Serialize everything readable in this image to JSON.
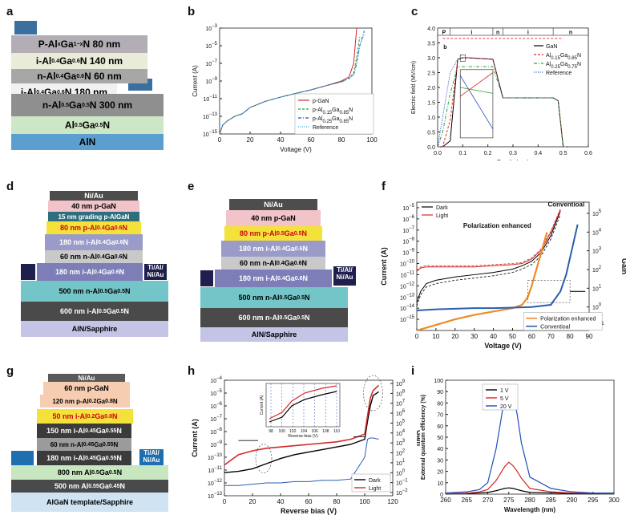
{
  "labels": {
    "a": "a",
    "b": "b",
    "c": "c",
    "d": "d",
    "e": "e",
    "f": "f",
    "g": "g",
    "h": "h",
    "i": "i"
  },
  "panel_a": {
    "layers": [
      {
        "text": "P-Al<sub>x</sub>Ga<sub>1−x</sub>N 80 nm",
        "color": "#b3aeb6"
      },
      {
        "text": "i-Al<sub>0.4</sub>Ga<sub>0.6</sub>N 140 nm",
        "color": "#e9ecd8"
      },
      {
        "text": "n-Al<sub>0.4</sub>Ga<sub>0.6</sub>N 60 nm",
        "color": "#a7a7a7"
      },
      {
        "text": "i-Al<sub>0.4</sub>Ga<sub>0.6</sub>N 180 nm",
        "color": "#f1f1f1"
      },
      {
        "text": "n-Al<sub>0.5</sub>Ga<sub>0.5</sub>N 300 nm",
        "color": "#8f8f8f"
      },
      {
        "text": "Al<sub>0.5</sub>Ga<sub>0.5</sub>N",
        "color": "#cde6c5"
      },
      {
        "text": "AlN",
        "color": "#5b9fd0"
      }
    ]
  },
  "panel_b": {
    "ylabel": "Current (A)",
    "xlabel": "Voltage (V)",
    "xticks": [
      "0",
      "20",
      "40",
      "60",
      "80",
      "100"
    ],
    "yticks": [
      "10<tspan font-size='6' dy='-4'>−3</tspan>",
      "10<tspan font-size='6' dy='-4'>−5</tspan>",
      "10<tspan font-size='6' dy='-4'>−7</tspan>",
      "10<tspan font-size='6' dy='-4'>−9</tspan>",
      "10<tspan font-size='6' dy='-4'>−11</tspan>",
      "10<tspan font-size='6' dy='-4'>−13</tspan>",
      "10<tspan font-size='6' dy='-4'>−15</tspan>"
    ],
    "legend": [
      "p-GaN",
      "p-Al<tspan font-size='6' dy='3'>0.15</tspan><tspan dy='-3'>Ga</tspan><tspan font-size='6' dy='3'>0.85</tspan><tspan dy='-3'>N</tspan>",
      "p-Al<tspan font-size='6' dy='3'>0.25</tspan><tspan dy='-3'>Ga</tspan><tspan font-size='6' dy='3'>0.85</tspan><tspan dy='-3'>N</tspan>",
      "Reference"
    ]
  },
  "chart_data": [
    {
      "type": "line",
      "panel": "b",
      "xlabel": "Voltage (V)",
      "ylabel": "Current (A)",
      "xlim": [
        0,
        100
      ],
      "ylim": [
        1e-15,
        0.001
      ],
      "yscale": "log",
      "x": [
        0,
        2,
        5,
        10,
        15,
        20,
        30,
        40,
        50,
        60,
        70,
        80,
        85,
        88,
        90,
        92,
        95
      ],
      "series": [
        {
          "name": "p-GaN",
          "color": "#d62728",
          "values": [
            1e-15,
            1e-14,
            3e-14,
            1e-13,
            2e-13,
            1e-12,
            5e-12,
            1.5e-11,
            4e-11,
            1e-10,
            3e-10,
            1e-09,
            3e-09,
            1e-07,
            0.001,
            null,
            null
          ]
        },
        {
          "name": "p-Al0.15Ga0.85N",
          "color": "#2ca02c",
          "values": [
            1e-15,
            1e-14,
            3e-14,
            1e-13,
            2e-13,
            1e-12,
            5e-12,
            1.5e-11,
            4e-11,
            1e-10,
            3e-10,
            8e-10,
            2e-09,
            8e-09,
            5e-07,
            0.0001,
            null
          ]
        },
        {
          "name": "p-Al0.25Ga0.85N",
          "color": "#1f4fbf",
          "values": [
            1e-15,
            1e-14,
            3e-14,
            1e-13,
            2e-13,
            1e-12,
            5e-12,
            1.5e-11,
            4e-11,
            1e-10,
            3e-10,
            8e-10,
            2e-09,
            5e-09,
            1e-07,
            1e-05,
            0.0005
          ]
        },
        {
          "name": "Reference",
          "color": "#33a9e0",
          "values": [
            1e-15,
            1e-14,
            3e-14,
            1e-13,
            2e-13,
            1e-12,
            5e-12,
            1.5e-11,
            4e-11,
            1e-10,
            3e-10,
            8e-10,
            2e-09,
            5e-09,
            8e-08,
            1e-05,
            0.0002
          ]
        }
      ]
    },
    {
      "type": "line",
      "panel": "c",
      "xlabel": "Depth (um)",
      "ylabel": "Electric field (MV/cm)",
      "xlim": [
        0,
        0.6
      ],
      "ylim": [
        0,
        4
      ],
      "x": [
        0.0,
        0.02,
        0.05,
        0.08,
        0.1,
        0.12,
        0.22,
        0.26,
        0.46,
        0.48,
        0.5,
        0.52
      ],
      "series": [
        {
          "name": "GaN",
          "color": "#000000",
          "values": [
            0,
            0,
            0.2,
            2.95,
            3.0,
            3.0,
            2.95,
            1.65,
            1.65,
            1.55,
            0,
            0
          ]
        },
        {
          "name": "Al0.15Ga0.85N",
          "color": "#d62728",
          "values": [
            0,
            0,
            0.9,
            2.95,
            3.0,
            3.0,
            2.95,
            1.65,
            1.65,
            1.55,
            0,
            0
          ]
        },
        {
          "name": "Al0.25Ga0.75N",
          "color": "#2ca02c",
          "values": [
            0,
            0.5,
            1.8,
            2.7,
            2.7,
            2.7,
            2.7,
            1.65,
            1.65,
            1.55,
            0,
            0
          ]
        },
        {
          "name": "Reference",
          "color": "#1f4fbf",
          "values": [
            0,
            1.0,
            2.5,
            2.95,
            3.0,
            3.0,
            2.95,
            1.65,
            1.65,
            1.55,
            0,
            0
          ]
        }
      ]
    },
    {
      "type": "line",
      "panel": "f",
      "xlabel": "Voltage (V)",
      "ylabel": "Current (A)",
      "y2label": "Gain",
      "xlim": [
        0,
        90
      ],
      "ylim": [
        1e-16,
        0.0001
      ],
      "yscale": "log",
      "series": [
        {
          "name": "Dark",
          "color": "#000000"
        },
        {
          "name": "Light",
          "color": "#d62728"
        },
        {
          "name": "Polarization enhanced",
          "color": "#f08a24"
        },
        {
          "name": "Conventioal",
          "color": "#2a5db0"
        }
      ]
    },
    {
      "type": "line",
      "panel": "h",
      "xlabel": "Reverse bias (V)",
      "ylabel": "Current (A)",
      "y2label": "Gain",
      "xlim": [
        0,
        120
      ],
      "ylim": [
        1e-13,
        0.0001
      ],
      "yscale": "log",
      "series": [
        {
          "name": "Dark",
          "color": "#000000"
        },
        {
          "name": "Light",
          "color": "#d62728"
        }
      ]
    },
    {
      "type": "line",
      "panel": "i",
      "xlabel": "Wavelength (nm)",
      "ylabel": "External quantum efficiency (%)",
      "xlim": [
        260,
        300
      ],
      "ylim": [
        0,
        100
      ],
      "x": [
        260,
        265,
        268,
        270,
        272,
        273,
        274,
        275,
        276,
        277,
        278,
        280,
        285,
        290,
        295,
        300
      ],
      "series": [
        {
          "name": "1 V",
          "color": "#000000",
          "values": [
            0.5,
            0.5,
            1,
            1.5,
            3,
            4,
            5,
            5.5,
            5,
            4,
            3,
            1.5,
            1,
            0.5,
            0.5,
            0.5
          ]
        },
        {
          "name": "5 V",
          "color": "#d62728",
          "values": [
            0.5,
            0.8,
            2,
            4,
            12,
            18,
            24,
            28,
            25,
            20,
            14,
            5,
            2,
            1,
            0.8,
            0.5
          ]
        },
        {
          "name": "20 V",
          "color": "#1f4fbf",
          "values": [
            1,
            2,
            4,
            10,
            40,
            62,
            85,
            96,
            88,
            70,
            45,
            15,
            5,
            2,
            1,
            1
          ]
        }
      ]
    }
  ],
  "panel_c": {
    "ylabel": "Electric field (MV/cm)",
    "xlabel": "Depth (um)",
    "xticks": [
      "0.0",
      "0.1",
      "0.2",
      "0.3",
      "0.4",
      "0.5",
      "0.6"
    ],
    "yticks": [
      "0.0",
      "0.5",
      "1.0",
      "1.5",
      "2.0",
      "2.5",
      "3.0",
      "3.5",
      "4.0"
    ],
    "regions": [
      "P",
      "i",
      "n",
      "i",
      "n"
    ],
    "inset_label": "b",
    "legend": [
      "GaN",
      "Al<tspan font-size='6' dy='3'>0.15</tspan><tspan dy='-3'>Ga</tspan><tspan font-size='6' dy='3'>0.85</tspan><tspan dy='-3'>N</tspan>",
      "Al<tspan font-size='6' dy='3'>0.25</tspan><tspan dy='-3'>Ga</tspan><tspan font-size='6' dy='3'>0.75</tspan><tspan dy='-3'>N</tspan>",
      "Reference"
    ]
  },
  "panel_d": {
    "layers": [
      {
        "text": "Ni/Au",
        "color": "#4d4d4d",
        "fg": "#fff"
      },
      {
        "text": "40 nm p-GaN",
        "color": "#f2c3c8",
        "fg": "#000"
      },
      {
        "text": "15 nm grading p-AlGaN",
        "color": "#2e6f7f",
        "fg": "#fff"
      },
      {
        "text": "80 nm p-Al<sub>0.4</sub>Ga<sub>0.6</sub>N",
        "color": "#f4e13a",
        "fg": "#d0021b"
      },
      {
        "text": "180 nm i-Al<sub>0.4</sub>Ga<sub>0.6</sub>N",
        "color": "#9b9bc9",
        "fg": "#fff"
      },
      {
        "text": "60 nm n-Al<sub>0.4</sub>Ga<sub>0.6</sub>N",
        "color": "#c9c9c9",
        "fg": "#000"
      },
      {
        "text": "180 nm i-Al<sub>0.4</sub>Ga<sub>0.6</sub>N",
        "color": "#7d7db8",
        "fg": "#fff"
      },
      {
        "text": "500 nm n-Al<sub>0.5</sub>Ga<sub>0.5</sub>N",
        "color": "#74c5c8",
        "fg": "#000"
      },
      {
        "text": "600 nm i-Al<sub>0.5</sub>Ga<sub>0.5</sub>N",
        "color": "#4a4a4a",
        "fg": "#fff"
      },
      {
        "text": "AlN/Sapphire",
        "color": "#c4c4e6",
        "fg": "#000"
      }
    ],
    "contact": "Ti/Al/<br>Ni/Au"
  },
  "panel_e": {
    "layers": [
      {
        "text": "Ni/Au",
        "color": "#4d4d4d",
        "fg": "#fff"
      },
      {
        "text": "40 nm p-GaN",
        "color": "#f2c3c8",
        "fg": "#000"
      },
      {
        "text": "80 nm p-Al<sub>0.5</sub>Ga<sub>0.5</sub>N",
        "color": "#f4e13a",
        "fg": "#d0021b"
      },
      {
        "text": "180 nm i-Al<sub>0.4</sub>Ga<sub>0.6</sub>N",
        "color": "#9b9bc9",
        "fg": "#fff"
      },
      {
        "text": "60 nm n-Al<sub>0.4</sub>Ga<sub>0.6</sub>N",
        "color": "#c9c9c9",
        "fg": "#000"
      },
      {
        "text": "180 nm i-Al<sub>0.4</sub>Ga<sub>0.6</sub>N",
        "color": "#7d7db8",
        "fg": "#fff"
      },
      {
        "text": "500 nm n-Al<sub>0.5</sub>Ga<sub>0.5</sub>N",
        "color": "#74c5c8",
        "fg": "#000"
      },
      {
        "text": "600 nm n-Al<sub>0.5</sub>Ga<sub>0.5</sub>N",
        "color": "#4a4a4a",
        "fg": "#fff"
      },
      {
        "text": "AlN/Sapphire",
        "color": "#c4c4e6",
        "fg": "#000"
      }
    ],
    "contact": "Ti/Al/<br>Ni/Au"
  },
  "panel_f": {
    "ylabel": "Current (A)",
    "y2label": "Gain",
    "xlabel": "Voltage (V)",
    "xticks": [
      "0",
      "10",
      "20",
      "30",
      "40",
      "50",
      "60",
      "70",
      "80",
      "90"
    ],
    "yticks": [
      "10<tspan font-size='6' dy='-4'>−5</tspan>",
      "10<tspan font-size='6' dy='-4'>−6</tspan>",
      "10<tspan font-size='6' dy='-4'>−7</tspan>",
      "10<tspan font-size='6' dy='-4'>−8</tspan>",
      "10<tspan font-size='6' dy='-4'>−9</tspan>",
      "10<tspan font-size='6' dy='-4'>−10</tspan>",
      "10<tspan font-size='6' dy='-4'>−11</tspan>",
      "10<tspan font-size='6' dy='-4'>−12</tspan>",
      "10<tspan font-size='6' dy='-4'>−13</tspan>",
      "10<tspan font-size='6' dy='-4'>−14</tspan>",
      "10<tspan font-size='6' dy='-4'>−15</tspan>"
    ],
    "y2ticks": [
      "10<tspan font-size='6' dy='-4'>5</tspan>",
      "10<tspan font-size='6' dy='-4'>4</tspan>",
      "10<tspan font-size='6' dy='-4'>3</tspan>",
      "10<tspan font-size='6' dy='-4'>2</tspan>",
      "10<tspan font-size='6' dy='-4'>1</tspan>",
      "10<tspan font-size='6' dy='-4'>0</tspan>",
      "10<tspan font-size='6' dy='-4'>−1</tspan>"
    ],
    "legend": [
      "Dark",
      "Light"
    ],
    "legend2": [
      "Polarization enhanced",
      "Conventioal"
    ],
    "ann1": "Polarization enhanced",
    "ann2": "Conventioal"
  },
  "panel_g": {
    "layers": [
      {
        "text": "Ni/Au",
        "color": "#5a5a5a",
        "fg": "#fff"
      },
      {
        "text": "60 nm p-GaN",
        "color": "#f6cdb0",
        "fg": "#000"
      },
      {
        "text": "120 nm p-Al<sub>0.2</sub>Ga<sub>0.8</sub>N",
        "color": "#f6cdb0",
        "fg": "#000"
      },
      {
        "text": "50 nm i-Al<sub>0.2</sub>Ga<sub>0.8</sub>N",
        "color": "#f4e13a",
        "fg": "#d0021b"
      },
      {
        "text": "150 nm i-Al<sub>0.45</sub>Ga<sub>0.55</sub>N",
        "color": "#3b3b3b",
        "fg": "#fff"
      },
      {
        "text": "60 nm n-Al<sub>0.45</sub>Ga<sub>0.55</sub>N",
        "color": "#9b9b9b",
        "fg": "#000"
      },
      {
        "text": "180 nm i-Al<sub>0.45</sub>Ga<sub>0.55</sub>N",
        "color": "#3b3b3b",
        "fg": "#fff"
      },
      {
        "text": "800 nm Al<sub>0.5</sub>Ga<sub>0.5</sub>N",
        "color": "#c8e6c0",
        "fg": "#000"
      },
      {
        "text": "500 nm Al<sub>0.55</sub>Ga<sub>0.45</sub>N",
        "color": "#4a4a4a",
        "fg": "#fff"
      },
      {
        "text": "AlGaN template/Sapphire",
        "color": "#cfe3f2",
        "fg": "#000"
      }
    ],
    "contact": "Ti/Al/<br>Ni/Au"
  },
  "panel_h": {
    "ylabel": "Current (A)",
    "y2label": "Gain",
    "xlabel": "Reverse bias (V)",
    "xticks": [
      "0",
      "20",
      "40",
      "60",
      "80",
      "100",
      "120"
    ],
    "yticks": [
      "10<tspan font-size='6' dy='-4'>−4</tspan>",
      "10<tspan font-size='6' dy='-4'>−5</tspan>",
      "10<tspan font-size='6' dy='-4'>−6</tspan>",
      "10<tspan font-size='6' dy='-4'>−7</tspan>",
      "10<tspan font-size='6' dy='-4'>−8</tspan>",
      "10<tspan font-size='6' dy='-4'>−9</tspan>",
      "10<tspan font-size='6' dy='-4'>−10</tspan>",
      "10<tspan font-size='6' dy='-4'>−11</tspan>",
      "10<tspan font-size='6' dy='-4'>−12</tspan>",
      "10<tspan font-size='6' dy='-4'>−13</tspan>"
    ],
    "y2ticks": [
      "10<tspan font-size='6' dy='-4'>9</tspan>",
      "10<tspan font-size='6' dy='-4'>8</tspan>",
      "10<tspan font-size='6' dy='-4'>7</tspan>",
      "10<tspan font-size='6' dy='-4'>6</tspan>",
      "10<tspan font-size='6' dy='-4'>5</tspan>",
      "10<tspan font-size='6' dy='-4'>4</tspan>",
      "10<tspan font-size='6' dy='-4'>3</tspan>",
      "10<tspan font-size='6' dy='-4'>2</tspan>",
      "10<tspan font-size='6' dy='-4'>1</tspan>",
      "10<tspan font-size='6' dy='-4'>0</tspan>",
      "10<tspan font-size='6' dy='-4'>−1</tspan>",
      "10<tspan font-size='6' dy='-4'>−2</tspan>"
    ],
    "legend": [
      "Dark",
      "Light"
    ],
    "inset_xlabel": "Reverse bias (V)",
    "inset_ylabel": "Current (A)",
    "inset_xticks": [
      "98",
      "100",
      "102",
      "104",
      "106",
      "108",
      "110"
    ]
  },
  "panel_i": {
    "ylabel": "External quantum efficiency (%)",
    "xlabel": "Wavelength (nm)",
    "xticks": [
      "260",
      "265",
      "270",
      "275",
      "280",
      "285",
      "290",
      "295",
      "300"
    ],
    "yticks": [
      "0",
      "10",
      "20",
      "30",
      "40",
      "50",
      "60",
      "70",
      "80",
      "90",
      "100"
    ],
    "legend": [
      "1 V",
      "5 V",
      "20 V"
    ]
  }
}
